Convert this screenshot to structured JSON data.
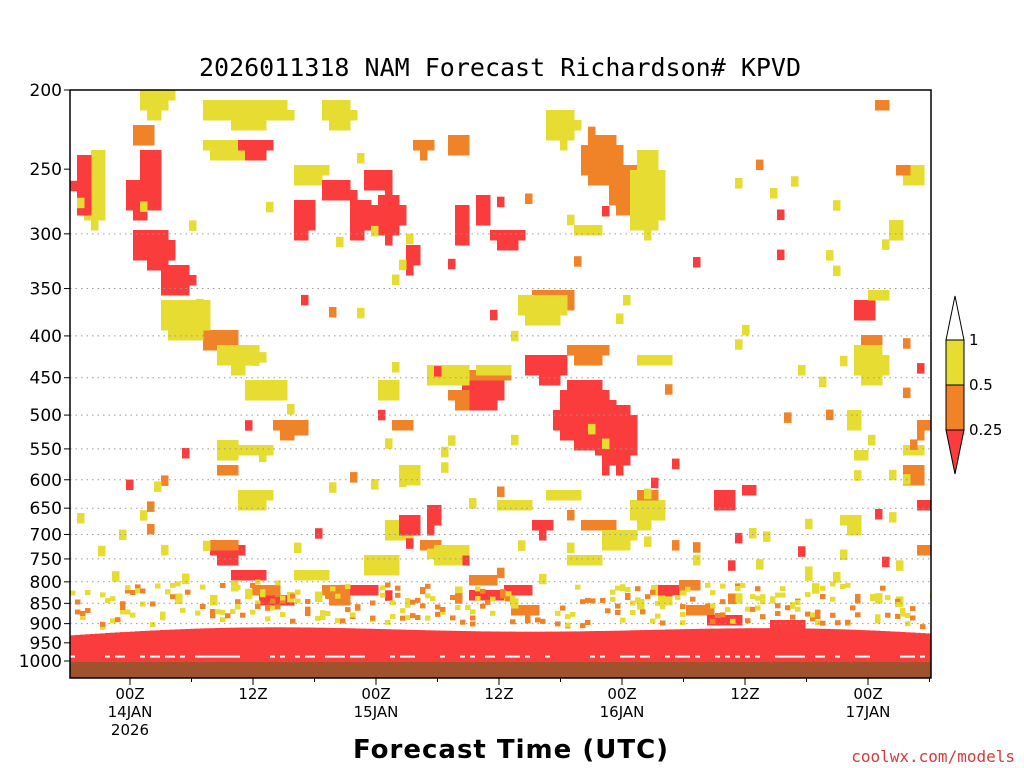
{
  "chart_data": {
    "type": "heatmap",
    "title": "2026011318 NAM Forecast Richardson# KPVD",
    "xlabel": "Forecast Time (UTC)",
    "ylabel": "",
    "credit": "coolwx.com/models",
    "y_scale": "log-pressure",
    "y_inverted": true,
    "ylim": [
      1000,
      200
    ],
    "y_ticks": [
      "200",
      "250",
      "300",
      "350",
      "400",
      "450",
      "500",
      "550",
      "600",
      "650",
      "700",
      "750",
      "800",
      "850",
      "900",
      "950",
      "1000"
    ],
    "x_ticks": [
      {
        "time": "2026-01-14T00Z",
        "line1": "00Z",
        "line2": "14JAN",
        "line3": "2026"
      },
      {
        "time": "2026-01-14T12Z",
        "line1": "12Z",
        "line2": "",
        "line3": ""
      },
      {
        "time": "2026-01-15T00Z",
        "line1": "00Z",
        "line2": "15JAN",
        "line3": ""
      },
      {
        "time": "2026-01-15T12Z",
        "line1": "12Z",
        "line2": "",
        "line3": ""
      },
      {
        "time": "2026-01-16T00Z",
        "line1": "00Z",
        "line2": "16JAN",
        "line3": ""
      },
      {
        "time": "2026-01-16T12Z",
        "line1": "12Z",
        "line2": "",
        "line3": ""
      },
      {
        "time": "2026-01-17T00Z",
        "line1": "00Z",
        "line2": "17JAN",
        "line3": ""
      }
    ],
    "x_range": [
      "2026-01-13T18Z",
      "2026-01-17T06Z"
    ],
    "grid": "dotted horizontal at 300-900 hPa",
    "colorbar": {
      "labels": [
        "1",
        "0.5",
        "0.25"
      ],
      "bins": [
        {
          "range": "0.5-1",
          "color": "#e6dc32"
        },
        {
          "range": "0.25-0.5",
          "color": "#f08228"
        },
        {
          "range": "<0.25",
          "color": "#fa3c3c"
        }
      ]
    },
    "colors": {
      "yellow": "#e6dc32",
      "orange": "#f08228",
      "red": "#fa3c3c",
      "ground": "#a0522d"
    },
    "regions": [
      {
        "c": "Y",
        "t": "13T20",
        "p": [
          295,
          230
        ],
        "tw": 2,
        "pw": 20
      },
      {
        "c": "R",
        "t": "13T19",
        "p": [
          285,
          235
        ],
        "tw": 1,
        "pw": 15
      },
      {
        "c": "Y",
        "t": "14T02",
        "p": [
          215,
          190
        ],
        "tw": 3,
        "pw": 25
      },
      {
        "c": "O",
        "t": "14T01",
        "p": [
          230,
          215
        ],
        "tw": 2,
        "pw": 15
      },
      {
        "c": "R",
        "t": "14T02",
        "p": [
          255,
          230
        ],
        "tw": 2,
        "pw": 20
      },
      {
        "c": "R",
        "t": "14T01",
        "p": [
          285,
          250
        ],
        "tw": 3,
        "pw": 35
      },
      {
        "c": "R",
        "t": "14T02",
        "p": [
          330,
          290
        ],
        "tw": 4,
        "pw": 45
      },
      {
        "c": "R",
        "t": "14T04",
        "p": [
          360,
          320
        ],
        "tw": 3,
        "pw": 30
      },
      {
        "c": "O",
        "t": "14T06",
        "p": [
          380,
          350
        ],
        "tw": 3,
        "pw": 30
      },
      {
        "c": "O",
        "t": "14T08",
        "p": [
          410,
          380
        ],
        "tw": 3,
        "pw": 25
      },
      {
        "c": "Y",
        "t": "14T05",
        "p": [
          400,
          350
        ],
        "tw": 5,
        "pw": 40
      },
      {
        "c": "Y",
        "t": "14T10",
        "p": [
          440,
          400
        ],
        "tw": 4,
        "pw": 35
      },
      {
        "c": "Y",
        "t": "14T13",
        "p": [
          480,
          440
        ],
        "tw": 4,
        "pw": 35
      },
      {
        "c": "O",
        "t": "14T15",
        "p": [
          520,
          490
        ],
        "tw": 3,
        "pw": 30
      },
      {
        "c": "Y",
        "t": "14T11",
        "p": [
          220,
          200
        ],
        "tw": 10,
        "pw": 12
      },
      {
        "c": "Y",
        "t": "14T10",
        "p": [
          245,
          225
        ],
        "tw": 6,
        "pw": 15
      },
      {
        "c": "R",
        "t": "14T12",
        "p": [
          240,
          225
        ],
        "tw": 3,
        "pw": 15
      },
      {
        "c": "Y",
        "t": "14T17",
        "p": [
          260,
          240
        ],
        "tw": 3,
        "pw": 20
      },
      {
        "c": "R",
        "t": "14T17",
        "p": [
          300,
          265
        ],
        "tw": 2,
        "pw": 25
      },
      {
        "c": "R",
        "t": "14T20",
        "p": [
          270,
          250
        ],
        "tw": 3,
        "pw": 20
      },
      {
        "c": "Y",
        "t": "14T20",
        "p": [
          220,
          200
        ],
        "tw": 3,
        "pw": 15
      },
      {
        "c": "R",
        "t": "14T22",
        "p": [
          300,
          265
        ],
        "tw": 2,
        "pw": 25
      },
      {
        "c": "R",
        "t": "15T01",
        "p": [
          300,
          260
        ],
        "tw": 3,
        "pw": 35
      },
      {
        "c": "R",
        "t": "15T00",
        "p": [
          265,
          245
        ],
        "tw": 3,
        "pw": 20
      },
      {
        "c": "O",
        "t": "15T04",
        "p": [
          240,
          225
        ],
        "tw": 2,
        "pw": 15
      },
      {
        "c": "R",
        "t": "15T03",
        "p": [
          330,
          300
        ],
        "tw": 1,
        "pw": 30
      },
      {
        "c": "R",
        "t": "15T06",
        "p": [
          200,
          190
        ],
        "tw": 2,
        "pw": 12
      },
      {
        "c": "O",
        "t": "15T08",
        "p": [
          240,
          220
        ],
        "tw": 2,
        "pw": 20
      },
      {
        "c": "R",
        "t": "15T08",
        "p": [
          310,
          270
        ],
        "tw": 1,
        "pw": 40
      },
      {
        "c": "R",
        "t": "15T10",
        "p": [
          290,
          260
        ],
        "tw": 1,
        "pw": 30
      },
      {
        "c": "R",
        "t": "15T12",
        "p": [
          310,
          290
        ],
        "tw": 3,
        "pw": 25
      },
      {
        "c": "Y",
        "t": "15T14",
        "p": [
          200,
          190
        ],
        "tw": 4,
        "pw": 12
      },
      {
        "c": "Y",
        "t": "15T18",
        "p": [
          230,
          205
        ],
        "tw": 3,
        "pw": 25
      },
      {
        "c": "O",
        "t": "15T22",
        "p": [
          260,
          220
        ],
        "tw": 4,
        "pw": 40
      },
      {
        "c": "O",
        "t": "16T00",
        "p": [
          280,
          240
        ],
        "tw": 3,
        "pw": 40
      },
      {
        "c": "Y",
        "t": "16T02",
        "p": [
          300,
          230
        ],
        "tw": 3,
        "pw": 60
      },
      {
        "c": "Y",
        "t": "15T20",
        "p": [
          300,
          285
        ],
        "tw": 2,
        "pw": 20
      },
      {
        "c": "O",
        "t": "15T17",
        "p": [
          370,
          340
        ],
        "tw": 4,
        "pw": 30
      },
      {
        "c": "Y",
        "t": "15T16",
        "p": [
          380,
          345
        ],
        "tw": 5,
        "pw": 35
      },
      {
        "c": "R",
        "t": "15T16",
        "p": [
          450,
          410
        ],
        "tw": 4,
        "pw": 40
      },
      {
        "c": "R",
        "t": "15T20",
        "p": [
          550,
          440
        ],
        "tw": 6,
        "pw": 110
      },
      {
        "c": "R",
        "t": "15T23",
        "p": [
          580,
          470
        ],
        "tw": 4,
        "pw": 110
      },
      {
        "c": "O",
        "t": "15T20",
        "p": [
          430,
          400
        ],
        "tw": 4,
        "pw": 30
      },
      {
        "c": "Y",
        "t": "16T03",
        "p": [
          430,
          410
        ],
        "tw": 3,
        "pw": 20
      },
      {
        "c": "R",
        "t": "15T10",
        "p": [
          490,
          440
        ],
        "tw": 5,
        "pw": 50
      },
      {
        "c": "O",
        "t": "15T11",
        "p": [
          450,
          430
        ],
        "tw": 4,
        "pw": 20
      },
      {
        "c": "Y",
        "t": "15T11",
        "p": [
          440,
          420
        ],
        "tw": 3,
        "pw": 20
      },
      {
        "c": "Y",
        "t": "15T07",
        "p": [
          460,
          420
        ],
        "tw": 4,
        "pw": 40
      },
      {
        "c": "O",
        "t": "15T08",
        "p": [
          480,
          450
        ],
        "tw": 2,
        "pw": 30
      },
      {
        "c": "O",
        "t": "15T02",
        "p": [
          510,
          490
        ],
        "tw": 2,
        "pw": 20
      },
      {
        "c": "Y",
        "t": "15T01",
        "p": [
          470,
          440
        ],
        "tw": 2,
        "pw": 30
      },
      {
        "c": "O",
        "t": "14T16",
        "p": [
          520,
          500
        ],
        "tw": 2,
        "pw": 20
      },
      {
        "c": "Y",
        "t": "14T12",
        "p": [
          560,
          530
        ],
        "tw": 3,
        "pw": 25
      },
      {
        "c": "O",
        "t": "14T09",
        "p": [
          590,
          560
        ],
        "tw": 2,
        "pw": 30
      },
      {
        "c": "Y",
        "t": "14T09",
        "p": [
          560,
          520
        ],
        "tw": 2,
        "pw": 40
      },
      {
        "c": "R",
        "t": "14T09",
        "p": [
          750,
          700
        ],
        "tw": 3,
        "pw": 60
      },
      {
        "c": "R",
        "t": "14T11",
        "p": [
          790,
          750
        ],
        "tw": 3,
        "pw": 50
      },
      {
        "c": "O",
        "t": "14T09",
        "p": [
          720,
          690
        ],
        "tw": 3,
        "pw": 40
      },
      {
        "c": "R",
        "t": "14T14",
        "p": [
          850,
          810
        ],
        "tw": 3,
        "pw": 40
      },
      {
        "c": "O",
        "t": "14T13",
        "p": [
          820,
          790
        ],
        "tw": 3,
        "pw": 30
      },
      {
        "c": "Y",
        "t": "14T12",
        "p": [
          650,
          600
        ],
        "tw": 3,
        "pw": 50
      },
      {
        "c": "Y",
        "t": "14T17",
        "p": [
          780,
          750
        ],
        "tw": 3,
        "pw": 40
      },
      {
        "c": "O",
        "t": "14T20",
        "p": [
          830,
          780
        ],
        "tw": 3,
        "pw": 60
      },
      {
        "c": "R",
        "t": "14T22",
        "p": [
          820,
          780
        ],
        "tw": 2,
        "pw": 40
      },
      {
        "c": "Y",
        "t": "15T00",
        "p": [
          780,
          720
        ],
        "tw": 3,
        "pw": 60
      },
      {
        "c": "Y",
        "t": "15T02",
        "p": [
          700,
          650
        ],
        "tw": 3,
        "pw": 60
      },
      {
        "c": "Y",
        "t": "15T03",
        "p": [
          600,
          560
        ],
        "tw": 2,
        "pw": 50
      },
      {
        "c": "R",
        "t": "15T03",
        "p": [
          700,
          640
        ],
        "tw": 2,
        "pw": 60
      },
      {
        "c": "R",
        "t": "15T05",
        "p": [
          690,
          630
        ],
        "tw": 1,
        "pw": 60
      },
      {
        "c": "O",
        "t": "15T05",
        "p": [
          730,
          690
        ],
        "tw": 2,
        "pw": 40
      },
      {
        "c": "R",
        "t": "15T08",
        "p": [
          760,
          720
        ],
        "tw": 2,
        "pw": 40
      },
      {
        "c": "Y",
        "t": "15T07",
        "p": [
          750,
          700
        ],
        "tw": 3,
        "pw": 60
      },
      {
        "c": "O",
        "t": "15T10",
        "p": [
          790,
          760
        ],
        "tw": 3,
        "pw": 30
      },
      {
        "c": "R",
        "t": "15T11",
        "p": [
          830,
          800
        ],
        "tw": 4,
        "pw": 30
      },
      {
        "c": "R",
        "t": "15T14",
        "p": [
          820,
          790
        ],
        "tw": 3,
        "pw": 30
      },
      {
        "c": "O",
        "t": "15T14",
        "p": [
          860,
          830
        ],
        "tw": 4,
        "pw": 30
      },
      {
        "c": "Y",
        "t": "15T13",
        "p": [
          650,
          620
        ],
        "tw": 3,
        "pw": 30
      },
      {
        "c": "R",
        "t": "15T16",
        "p": [
          690,
          650
        ],
        "tw": 2,
        "pw": 40
      },
      {
        "c": "Y",
        "t": "15T18",
        "p": [
          630,
          600
        ],
        "tw": 3,
        "pw": 30
      },
      {
        "c": "Y",
        "t": "15T20",
        "p": [
          760,
          720
        ],
        "tw": 3,
        "pw": 50
      },
      {
        "c": "O",
        "t": "15T21",
        "p": [
          680,
          650
        ],
        "tw": 3,
        "pw": 40
      },
      {
        "c": "Y",
        "t": "15T23",
        "p": [
          720,
          670
        ],
        "tw": 3,
        "pw": 60
      },
      {
        "c": "Y",
        "t": "16T02",
        "p": [
          680,
          620
        ],
        "tw": 3,
        "pw": 70
      },
      {
        "c": "O",
        "t": "16T02",
        "p": [
          620,
          600
        ],
        "tw": 2,
        "pw": 20
      },
      {
        "c": "Y",
        "t": "16T04",
        "p": [
          840,
          790
        ],
        "tw": 3,
        "pw": 60
      },
      {
        "c": "R",
        "t": "16T04",
        "p": [
          820,
          790
        ],
        "tw": 2,
        "pw": 30
      },
      {
        "c": "O",
        "t": "16T06",
        "p": [
          800,
          780
        ],
        "tw": 2,
        "pw": 25
      },
      {
        "c": "R",
        "t": "16T10",
        "p": [
          640,
          600
        ],
        "tw": 2,
        "pw": 50
      },
      {
        "c": "R",
        "t": "16T12",
        "p": [
          610,
          590
        ],
        "tw": 1,
        "pw": 25
      },
      {
        "c": "O",
        "t": "16T07",
        "p": [
          850,
          830
        ],
        "tw": 4,
        "pw": 25
      },
      {
        "c": "R",
        "t": "16T10",
        "p": [
          880,
          860
        ],
        "tw": 5,
        "pw": 25
      },
      {
        "c": "R",
        "t": "16T16",
        "p": [
          900,
          870
        ],
        "tw": 5,
        "pw": 30
      },
      {
        "c": "O",
        "t": "16T20",
        "p": [
          910,
          890
        ],
        "tw": 4,
        "pw": 25
      },
      {
        "c": "Y",
        "t": "16T22",
        "p": [
          680,
          640
        ],
        "tw": 2,
        "pw": 40
      },
      {
        "c": "Y",
        "t": "16T23",
        "p": [
          570,
          540
        ],
        "tw": 1,
        "pw": 30
      },
      {
        "c": "R",
        "t": "16T23",
        "p": [
          380,
          350
        ],
        "tw": 2,
        "pw": 30
      },
      {
        "c": "O",
        "t": "17T00",
        "p": [
          430,
          390
        ],
        "tw": 2,
        "pw": 40
      },
      {
        "c": "Y",
        "t": "17T00",
        "p": [
          460,
          400
        ],
        "tw": 3,
        "pw": 60
      },
      {
        "c": "Y",
        "t": "17T01",
        "p": [
          360,
          340
        ],
        "tw": 2,
        "pw": 25
      },
      {
        "c": "O",
        "t": "17T01",
        "p": [
          210,
          200
        ],
        "tw": 1,
        "pw": 12
      },
      {
        "c": "Y",
        "t": "17T02",
        "p": [
          300,
          280
        ],
        "tw": 1,
        "pw": 25
      },
      {
        "c": "Y",
        "t": "17T04",
        "p": [
          260,
          240
        ],
        "tw": 2,
        "pw": 20
      },
      {
        "c": "O",
        "t": "17T03",
        "p": [
          250,
          240
        ],
        "tw": 1,
        "pw": 15
      },
      {
        "c": "O",
        "t": "17T04",
        "p": [
          600,
          560
        ],
        "tw": 2,
        "pw": 40
      },
      {
        "c": "R",
        "t": "17T05",
        "p": [
          650,
          620
        ],
        "tw": 1,
        "pw": 30
      },
      {
        "c": "O",
        "t": "17T05",
        "p": [
          520,
          490
        ],
        "tw": 1,
        "pw": 30
      },
      {
        "c": "Y",
        "t": "17T04",
        "p": [
          550,
          530
        ],
        "tw": 2,
        "pw": 20
      },
      {
        "c": "Y",
        "t": "16T22",
        "p": [
          520,
          480
        ],
        "tw": 1,
        "pw": 40
      },
      {
        "c": "O",
        "t": "17T05",
        "p": [
          740,
          700
        ],
        "tw": 1,
        "pw": 40
      }
    ]
  }
}
